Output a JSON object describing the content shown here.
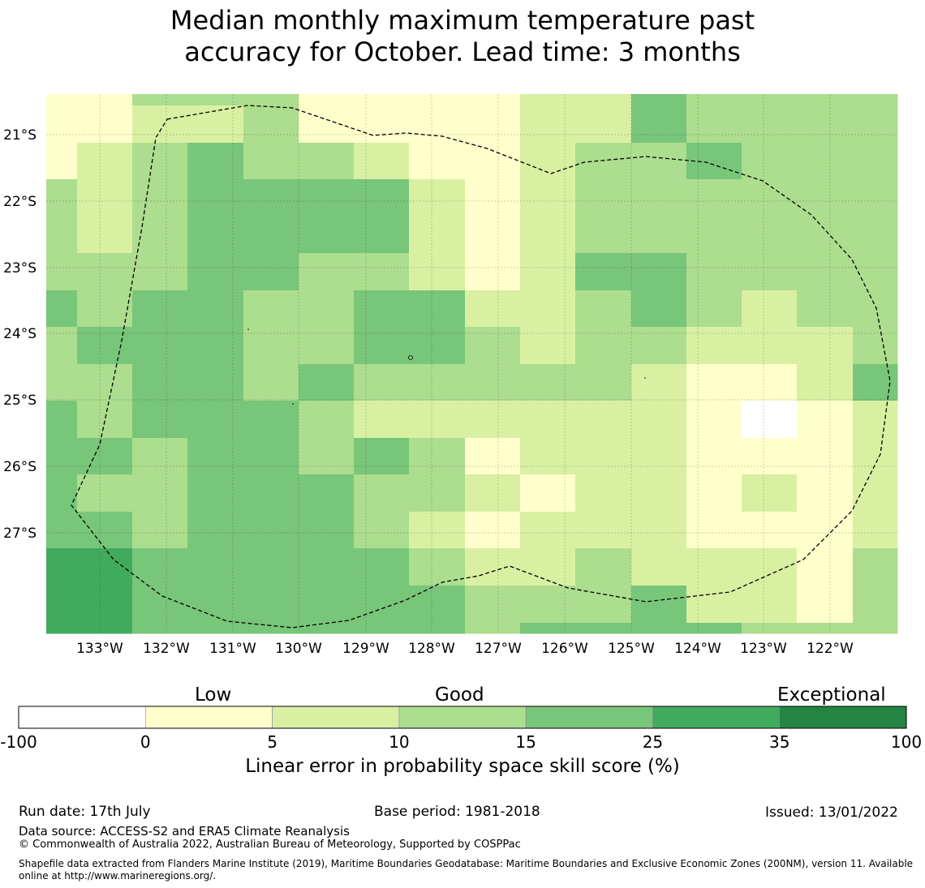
{
  "title_line1": "Median monthly maximum temperature past",
  "title_line2": "accuracy for October. Lead time: 3 months",
  "map": {
    "lon_range": [
      -133.8,
      -121.0
    ],
    "lat_range": [
      -28.5,
      -20.4
    ],
    "lon_ticks": [
      "133°W",
      "132°W",
      "131°W",
      "130°W",
      "129°W",
      "128°W",
      "127°W",
      "126°W",
      "125°W",
      "124°W",
      "123°W",
      "122°W"
    ],
    "lat_ticks": [
      "21°S",
      "22°S",
      "23°S",
      "24°S",
      "25°S",
      "26°S",
      "27°S"
    ],
    "grid": "on"
  },
  "colorbar": {
    "category_low": "Low",
    "category_good": "Good",
    "category_exceptional": "Exceptional",
    "ticks": [
      "-100",
      "0",
      "5",
      "10",
      "15",
      "25",
      "35",
      "100"
    ],
    "colors": [
      "#ffffff",
      "#ffffcc",
      "#d9f0a3",
      "#addd8e",
      "#78c679",
      "#41ab5d",
      "#238443"
    ],
    "xlabel": "Linear error in probability space skill score (%)"
  },
  "footer": {
    "run_date": "Run date: 17th July",
    "base_period": "Base period: 1981-2018",
    "issued": "Issued: 13/01/2022",
    "data_source": "Data source: ACCESS-S2 and ERA5 Climate Reanalysis",
    "copyright": "© Commonwealth of Australia 2022, Australian Bureau of Meteorology, Supported by COSPPac",
    "shapefile_note": "Shapefile data extracted from Flanders Marine Institute (2019), Maritime Boundaries Geodatabase: Maritime Boundaries and Exclusive Economic Zones (200NM), version 11. Available online at http://www.marineregions.org/."
  }
}
